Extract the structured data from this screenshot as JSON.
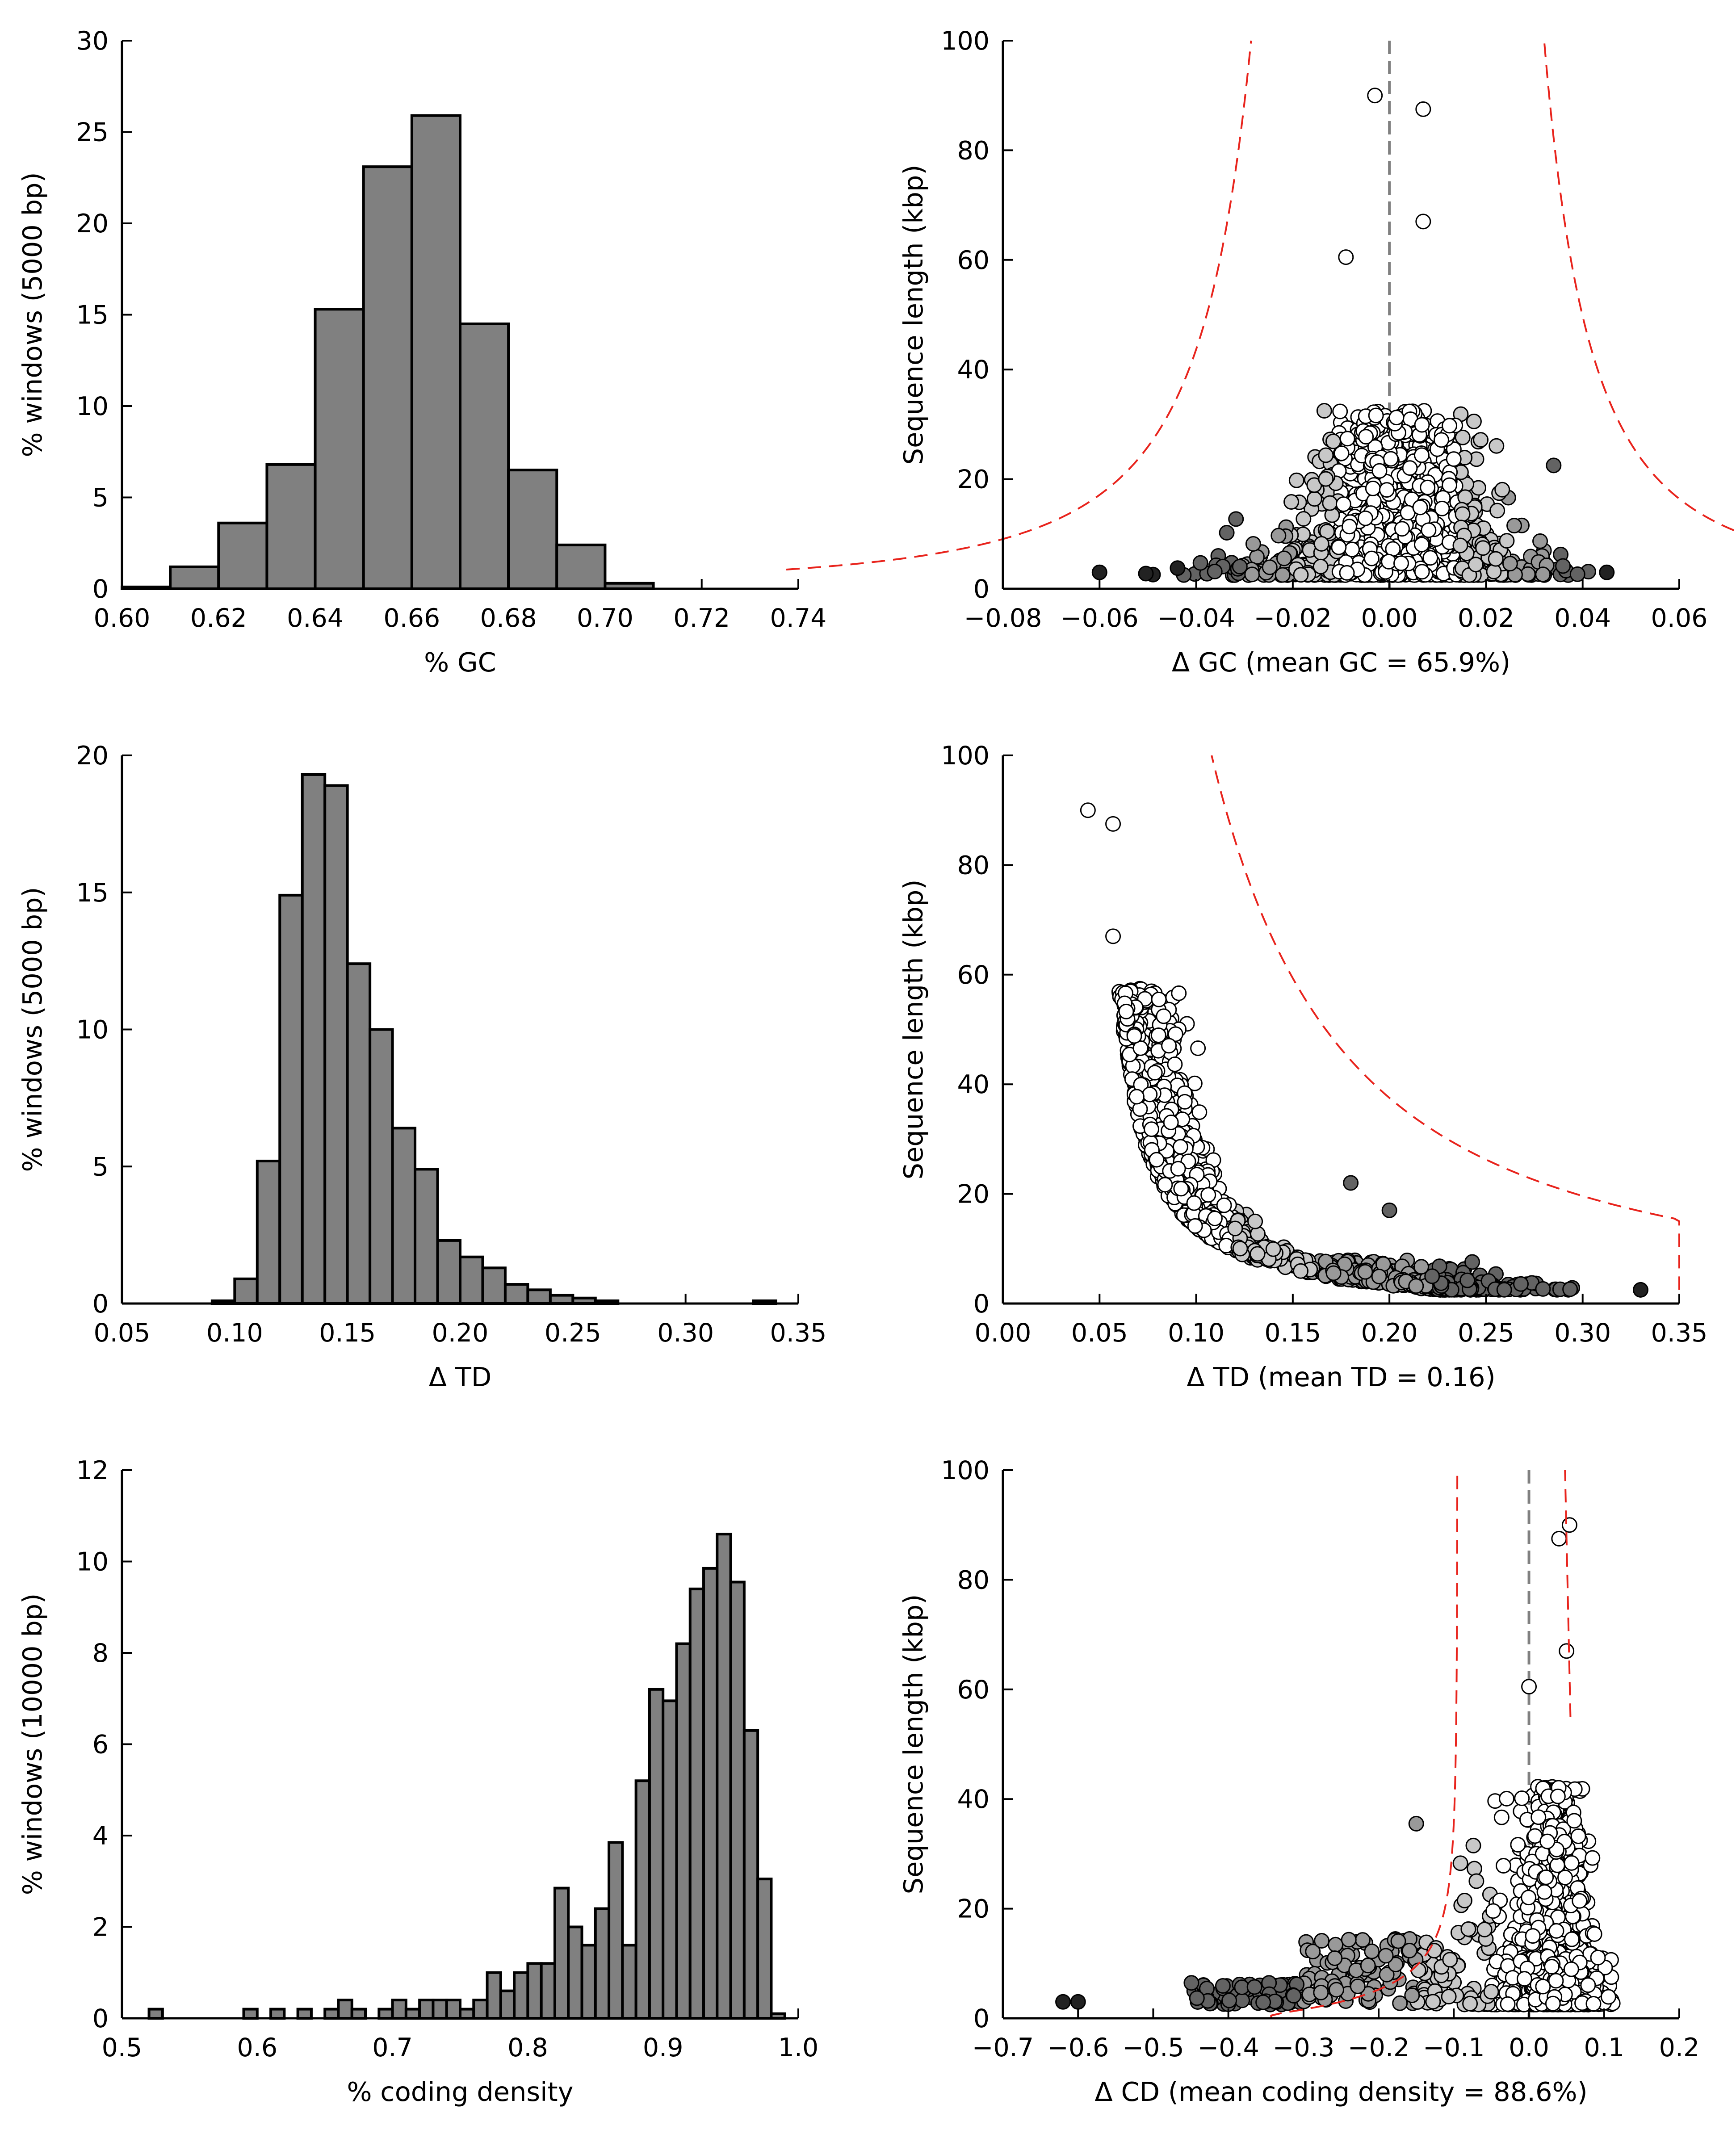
{
  "colors": {
    "bar_fill": "#808080",
    "axis": "#000000",
    "threshold_line": "#e8231c",
    "zero_line": "#808080",
    "marker_white": "#ffffff",
    "marker_lightgray": "#c8c8c8",
    "marker_gray": "#999999",
    "marker_darkgray": "#636363",
    "marker_black": "#222222"
  },
  "chart_data": [
    {
      "id": "gc-histogram",
      "type": "bar",
      "xlabel": "% GC",
      "ylabel": "% windows (5000 bp)",
      "xlim": [
        0.6,
        0.74
      ],
      "ylim": [
        0,
        30
      ],
      "xticks": [
        "0.60",
        "0.62",
        "0.64",
        "0.66",
        "0.68",
        "0.70",
        "0.72",
        "0.74"
      ],
      "yticks": [
        "0",
        "5",
        "10",
        "15",
        "20",
        "25",
        "30"
      ],
      "bin_edges": [
        0.6,
        0.61,
        0.62,
        0.63,
        0.64,
        0.65,
        0.66,
        0.67,
        0.68,
        0.69,
        0.7,
        0.71
      ],
      "values": [
        0.1,
        1.2,
        3.6,
        6.8,
        15.3,
        23.1,
        25.9,
        14.5,
        6.5,
        2.4,
        0.3
      ]
    },
    {
      "id": "gc-scatter",
      "type": "scatter",
      "xlabel": "Δ GC (mean GC = 65.9%)",
      "ylabel": "Sequence length (kbp)",
      "xlim": [
        -0.08,
        0.06
      ],
      "ylim": [
        0,
        100
      ],
      "xticks": [
        "−0.08",
        "−0.06",
        "−0.04",
        "−0.02",
        "0.00",
        "0.02",
        "0.04",
        "0.06"
      ],
      "yticks": [
        "0",
        "20",
        "40",
        "60",
        "80",
        "100"
      ],
      "zero_line": 0.0,
      "notable_points": [
        [
          -0.003,
          90
        ],
        [
          0.007,
          87.5
        ],
        [
          0.007,
          67
        ],
        [
          -0.009,
          60.5
        ],
        [
          0.034,
          22.5
        ],
        [
          -0.06,
          3
        ],
        [
          0.045,
          3
        ]
      ]
    },
    {
      "id": "td-histogram",
      "type": "bar",
      "xlabel": "Δ TD",
      "ylabel": "% windows (5000 bp)",
      "xlim": [
        0.05,
        0.35
      ],
      "ylim": [
        0,
        20
      ],
      "xticks": [
        "0.05",
        "0.10",
        "0.15",
        "0.20",
        "0.25",
        "0.30",
        "0.35"
      ],
      "yticks": [
        "0",
        "5",
        "10",
        "15",
        "20"
      ],
      "bin_edges": [
        0.09,
        0.1,
        0.11,
        0.12,
        0.13,
        0.14,
        0.15,
        0.16,
        0.17,
        0.18,
        0.19,
        0.2,
        0.21,
        0.22,
        0.23,
        0.24,
        0.25,
        0.26,
        0.27
      ],
      "values": [
        0.1,
        0.9,
        5.2,
        14.9,
        19.3,
        18.9,
        12.4,
        10.0,
        6.4,
        4.9,
        2.3,
        1.7,
        1.3,
        0.7,
        0.5,
        0.3,
        0.2,
        0.1
      ],
      "extra_bins": [
        {
          "edges": [
            0.33,
            0.34
          ],
          "value": 0.1
        }
      ]
    },
    {
      "id": "td-scatter",
      "type": "scatter",
      "xlabel": "Δ TD (mean TD = 0.16)",
      "ylabel": "Sequence length (kbp)",
      "xlim": [
        0.0,
        0.35
      ],
      "ylim": [
        0,
        100
      ],
      "xticks": [
        "0.00",
        "0.05",
        "0.10",
        "0.15",
        "0.20",
        "0.25",
        "0.30",
        "0.35"
      ],
      "yticks": [
        "0",
        "20",
        "40",
        "60",
        "80",
        "100"
      ],
      "notable_points": [
        [
          0.044,
          90
        ],
        [
          0.057,
          87.5
        ],
        [
          0.057,
          67
        ],
        [
          0.33,
          2.5
        ],
        [
          0.2,
          17
        ],
        [
          0.18,
          22
        ]
      ]
    },
    {
      "id": "cd-histogram",
      "type": "bar",
      "xlabel": "% coding density",
      "ylabel": "% windows (10000 bp)",
      "xlim": [
        0.5,
        1.0
      ],
      "ylim": [
        0,
        12
      ],
      "xticks": [
        "0.5",
        "0.6",
        "0.7",
        "0.8",
        "0.9",
        "1.0"
      ],
      "yticks": [
        "0",
        "2",
        "4",
        "6",
        "8",
        "10",
        "12"
      ],
      "bin_width": 0.01,
      "bin_starts": [
        0.52,
        0.59,
        0.61,
        0.63,
        0.65,
        0.66,
        0.67,
        0.69,
        0.7,
        0.71,
        0.72,
        0.73,
        0.74,
        0.75,
        0.76,
        0.77,
        0.78,
        0.79,
        0.8,
        0.81,
        0.82,
        0.83,
        0.84,
        0.85,
        0.86,
        0.87,
        0.88,
        0.89,
        0.9,
        0.91,
        0.92,
        0.93,
        0.94,
        0.95,
        0.96,
        0.97,
        0.98
      ],
      "values": [
        0.2,
        0.2,
        0.2,
        0.2,
        0.2,
        0.4,
        0.2,
        0.2,
        0.4,
        0.2,
        0.4,
        0.4,
        0.4,
        0.2,
        0.4,
        1.0,
        0.6,
        1.0,
        1.2,
        1.2,
        2.85,
        2.0,
        1.6,
        2.4,
        3.85,
        1.6,
        5.2,
        7.2,
        6.95,
        8.2,
        9.4,
        9.85,
        10.6,
        9.55,
        6.3,
        3.05,
        0.1
      ]
    },
    {
      "id": "cd-scatter",
      "type": "scatter",
      "xlabel": "Δ CD (mean coding density = 88.6%)",
      "ylabel": "Sequence length (kbp)",
      "xlim": [
        -0.7,
        0.2
      ],
      "ylim": [
        0,
        100
      ],
      "xticks": [
        "−0.7",
        "−0.6",
        "−0.5",
        "−0.4",
        "−0.3",
        "−0.2",
        "−0.1",
        "0.0",
        "0.1",
        "0.2"
      ],
      "yticks": [
        "0",
        "20",
        "40",
        "60",
        "80",
        "100"
      ],
      "zero_line": 0.0,
      "notable_points": [
        [
          0.054,
          90
        ],
        [
          0.04,
          87.5
        ],
        [
          0.05,
          67
        ],
        [
          0.0,
          60.5
        ],
        [
          -0.15,
          35.5
        ],
        [
          -0.62,
          3
        ],
        [
          -0.6,
          3
        ]
      ]
    }
  ]
}
